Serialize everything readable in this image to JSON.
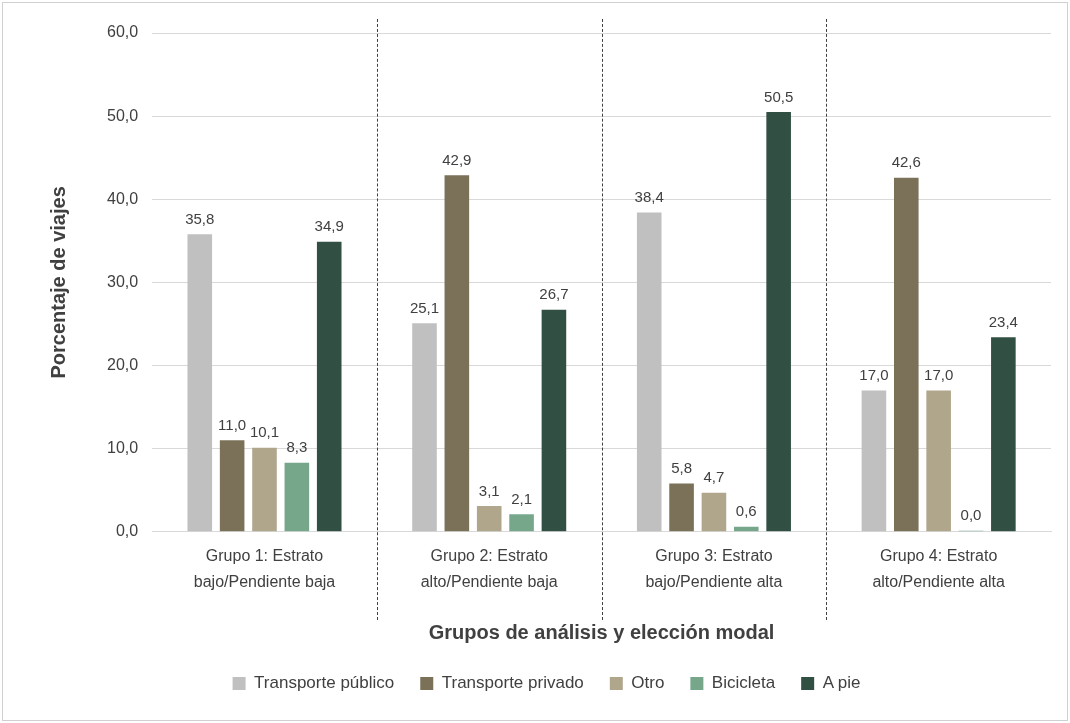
{
  "chart_data": {
    "type": "bar",
    "xlabel": "Grupos de análisis y elección modal",
    "ylabel": "Porcentaje de viajes",
    "categories": [
      "Grupo 1: Estrato bajo/Pendiente baja",
      "Grupo 2: Estrato alto/Pendiente baja",
      "Grupo 3: Estrato bajo/Pendiente alta",
      "Grupo 4: Estrato alto/Pendiente alta"
    ],
    "series": [
      {
        "name": "Transporte público",
        "color": "#c0c0c0",
        "values": [
          35.8,
          25.1,
          38.4,
          17.0
        ],
        "value_labels": [
          "35,8",
          "25,1",
          "38,4",
          "17,0"
        ]
      },
      {
        "name": "Transporte privado",
        "color": "#7a7158",
        "values": [
          11.0,
          42.9,
          5.8,
          42.6
        ],
        "value_labels": [
          "11,0",
          "42,9",
          "5,8",
          "42,6"
        ]
      },
      {
        "name": "Otro",
        "color": "#b0a68c",
        "values": [
          10.1,
          3.1,
          4.7,
          17.0
        ],
        "value_labels": [
          "10,1",
          "3,1",
          "4,7",
          "17,0"
        ]
      },
      {
        "name": "Bicicleta",
        "color": "#76a78b",
        "values": [
          8.3,
          2.1,
          0.6,
          0.0
        ],
        "value_labels": [
          "8,3",
          "2,1",
          "0,6",
          "0,0"
        ]
      },
      {
        "name": "A pie",
        "color": "#314f43",
        "values": [
          34.9,
          26.7,
          50.5,
          23.4
        ],
        "value_labels": [
          "34,9",
          "26,7",
          "50,5",
          "23,4"
        ]
      }
    ],
    "ylim": [
      0,
      60
    ],
    "yticks": [
      {
        "value": 0,
        "label": "0,0"
      },
      {
        "value": 10,
        "label": "10,0"
      },
      {
        "value": 20,
        "label": "20,0"
      },
      {
        "value": 30,
        "label": "30,0"
      },
      {
        "value": 40,
        "label": "40,0"
      },
      {
        "value": 50,
        "label": "50,0"
      },
      {
        "value": 60,
        "label": "60,0"
      }
    ],
    "grid": "y",
    "legend": "bottom"
  }
}
